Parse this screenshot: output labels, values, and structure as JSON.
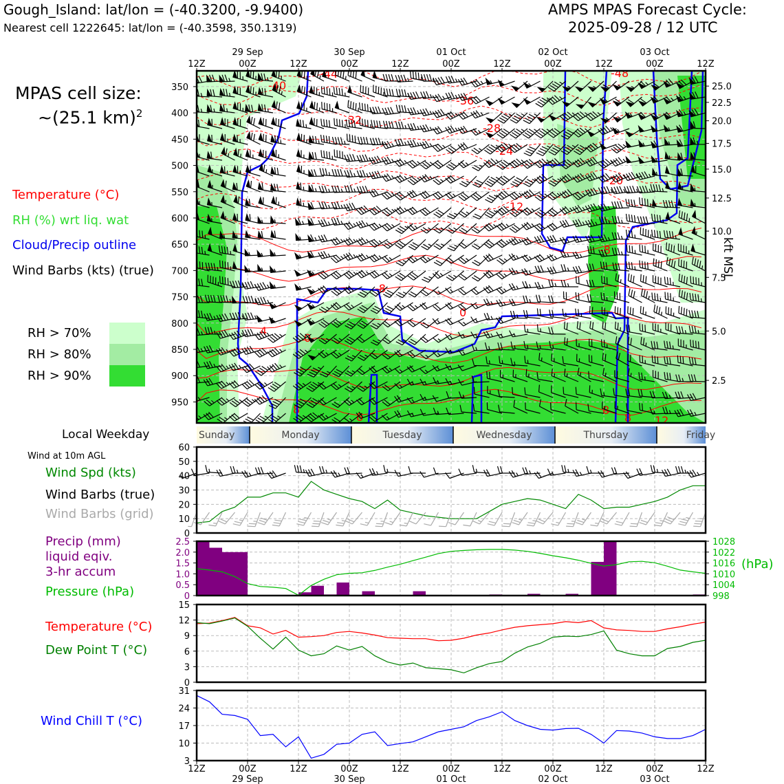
{
  "header": {
    "station": "Gough_Island: lat/lon = (-40.3200, -9.9400)",
    "nearest_cell": "Nearest cell 1222645: lat/lon = (-40.3598, 350.1319)",
    "cycle_title": "AMPS MPAS Forecast Cycle:",
    "cycle_time": "2025-09-28 / 12 UTC"
  },
  "colors": {
    "temperature": "#ff0000",
    "rh": "#33dd33",
    "rh70": "#ccffcc",
    "rh80": "#a3eca3",
    "rh90": "#33dd33",
    "cloud_outline": "#0000ee",
    "wind": "#000000",
    "wind_grid": "#aaaaaa",
    "wind_speed": "#008800",
    "precip": "#800080",
    "pressure": "#00bb00",
    "dewpoint": "#008000",
    "wind_chill": "#0000ff"
  },
  "left_panel": {
    "cell_size_label": "MPAS cell size:",
    "cell_size_value": "~(25.1 km)",
    "cell_size_exp": "2",
    "legend_temperature": "Temperature (°C)",
    "legend_rh": "RH (%) wrt liq. wat",
    "legend_cloud": "Cloud/Precip outline",
    "legend_wind": "Wind Barbs (kts) (true)",
    "rh_legend": [
      "RH > 70%",
      "RH > 80%",
      "RH > 90%"
    ],
    "weekday_title": "Local Weekday",
    "wind10m_title": "Wind at 10m AGL",
    "wind_spd_label": "Wind Spd (kts)",
    "wind_barbs_true": "Wind Barbs (true)",
    "wind_barbs_grid": "Wind Barbs (grid)",
    "precip_l1": "Precip (mm)",
    "precip_l2": "liquid eqiv.",
    "precip_l3": "3-hr accum",
    "pressure_label": "Pressure (hPa)",
    "temp_label": "Temperature (°C)",
    "dew_label": "Dew Point T (°C)",
    "windchill_label": "Wind Chill T (°C)",
    "pressure_unit": "(hPa)",
    "kft_label": "kft MSL"
  },
  "time_axis": {
    "top_date_labels": [
      "29 Sep",
      "30 Sep",
      "01 Oct",
      "02 Oct",
      "03 Oct"
    ],
    "hour_labels": [
      "12Z",
      "00Z",
      "12Z",
      "00Z",
      "12Z",
      "00Z",
      "12Z",
      "00Z",
      "12Z",
      "00Z",
      "12Z"
    ],
    "bottom_date_labels": [
      "29 Sep",
      "30 Sep",
      "01 Oct",
      "02 Oct",
      "03 Oct"
    ]
  },
  "weekdays": [
    "Sunday",
    "Monday",
    "Tuesday",
    "Wednesday",
    "Thursday",
    "Friday"
  ],
  "chart_data": [
    {
      "type": "heatmap",
      "title": "",
      "x_range_hours": [
        0,
        120
      ],
      "y_pressure_range_hpa": [
        990,
        320
      ],
      "pressure_ticks": [
        350,
        400,
        450,
        500,
        550,
        600,
        650,
        700,
        750,
        800,
        850,
        900,
        950
      ],
      "kft_ticks": [
        25.0,
        22.5,
        20.0,
        17.5,
        15.0,
        12.5,
        10.0,
        7.5,
        5.0,
        2.5
      ],
      "kft_tick_pressure": [
        349,
        380,
        415,
        458,
        507,
        562,
        625,
        713,
        815,
        909
      ],
      "temperature_contour_labels": [
        "-48",
        "-44",
        "-40",
        "-36",
        "-32",
        "-28",
        "-24",
        "-20",
        "-12",
        "-8",
        "-8",
        "0",
        "0",
        "4",
        "8",
        "8",
        "8",
        "8",
        "12"
      ],
      "rh_levels": [
        "RH > 70%",
        "RH > 80%",
        "RH > 90%"
      ],
      "grid": true
    },
    {
      "type": "line",
      "title": "Wind at 10m AGL",
      "ylim": [
        0,
        60
      ],
      "yticks": [
        0,
        10,
        20,
        30,
        40,
        50,
        60
      ],
      "x": [
        0,
        3,
        6,
        9,
        12,
        15,
        18,
        21,
        24,
        27,
        30,
        33,
        36,
        39,
        42,
        45,
        48,
        51,
        54,
        57,
        60,
        63,
        66,
        69,
        72,
        75,
        78,
        81,
        84,
        87,
        90,
        93,
        96,
        99,
        102,
        105,
        108,
        111,
        114,
        117,
        120
      ],
      "series": [
        {
          "name": "Wind Spd (kts)",
          "values": [
            7,
            8,
            15,
            18,
            25,
            25,
            28,
            28,
            25,
            36,
            30,
            27,
            24,
            22,
            17,
            23,
            16,
            14,
            12,
            11,
            10,
            10,
            10,
            15,
            20,
            22,
            24,
            23,
            20,
            17,
            27,
            23,
            17,
            18,
            18,
            20,
            22,
            25,
            30,
            33,
            33
          ]
        }
      ]
    },
    {
      "type": "bar",
      "title": "",
      "ylim": [
        0,
        2.5
      ],
      "yticks": [
        0,
        0.5,
        1.0,
        1.5,
        2.0,
        2.5
      ],
      "x": [
        0,
        3,
        6,
        9,
        12,
        15,
        18,
        21,
        24,
        27,
        30,
        33,
        36,
        39,
        42,
        45,
        48,
        51,
        54,
        57,
        60,
        63,
        66,
        69,
        72,
        75,
        78,
        81,
        84,
        87,
        90,
        93,
        96,
        99,
        102,
        105,
        108,
        111,
        114,
        117
      ],
      "series": [
        {
          "name": "Precip (mm)",
          "values": [
            2.5,
            2.2,
            2.0,
            2.0,
            0,
            0,
            0,
            0,
            0.15,
            0.45,
            0.05,
            0.6,
            0,
            0.2,
            0,
            0,
            0,
            0.2,
            0,
            0,
            0,
            0,
            0,
            0.05,
            0,
            0,
            0.08,
            0,
            0,
            0.08,
            0,
            1.55,
            2.5,
            0,
            0,
            0,
            0,
            0,
            0,
            0.05
          ]
        },
        {
          "name": "Pressure (hPa)",
          "axis": "right",
          "ylim": [
            998,
            1028
          ],
          "yticks": [
            998,
            1004,
            1010,
            1016,
            1022,
            1028
          ],
          "x": [
            0,
            3,
            6,
            9,
            12,
            15,
            18,
            21,
            24,
            27,
            30,
            33,
            36,
            39,
            42,
            45,
            48,
            51,
            54,
            57,
            60,
            63,
            66,
            69,
            72,
            75,
            78,
            81,
            84,
            87,
            90,
            93,
            96,
            99,
            102,
            105,
            108,
            111,
            114,
            117,
            120
          ],
          "values": [
            1012.9,
            1012.1,
            1011.1,
            1008.5,
            1004.6,
            1003.0,
            1002.6,
            1001.9,
            998.2,
            1003.6,
            1007.0,
            1009.5,
            1010.3,
            1010.6,
            1011.9,
            1013.7,
            1015.3,
            1017.3,
            1019.2,
            1021.2,
            1022.4,
            1022.9,
            1023.3,
            1023.5,
            1023.5,
            1023.1,
            1022.4,
            1021.3,
            1020.0,
            1018.9,
            1017.5,
            1015.8,
            1014.3,
            1015.1,
            1016.7,
            1016.9,
            1016.1,
            1014.2,
            1012.1,
            1011.1,
            1010.3
          ]
        }
      ]
    },
    {
      "type": "line",
      "title": "",
      "ylim": [
        0,
        15
      ],
      "yticks": [
        0,
        3,
        6,
        9,
        12,
        15
      ],
      "x": [
        0,
        3,
        6,
        9,
        12,
        15,
        18,
        21,
        24,
        27,
        30,
        33,
        36,
        39,
        42,
        45,
        48,
        51,
        54,
        57,
        60,
        63,
        66,
        69,
        72,
        75,
        78,
        81,
        84,
        87,
        90,
        93,
        96,
        99,
        102,
        105,
        108,
        111,
        114,
        117,
        120
      ],
      "series": [
        {
          "name": "Temperature (°C)",
          "values": [
            11.3,
            11.4,
            11.9,
            12.5,
            10.9,
            10.5,
            9.3,
            10.0,
            8.7,
            8.8,
            9.0,
            9.6,
            9.8,
            9.5,
            9.1,
            8.6,
            8.5,
            8.4,
            8.4,
            8.0,
            8.1,
            8.5,
            9.1,
            9.5,
            10.1,
            10.6,
            10.9,
            11.1,
            11.3,
            11.7,
            11.5,
            11.9,
            10.5,
            10.1,
            10.0,
            9.8,
            9.8,
            10.3,
            10.7,
            11.2,
            11.6
          ]
        },
        {
          "name": "Dew Point T (°C)",
          "values": [
            11.5,
            11.3,
            11.8,
            12.4,
            10.8,
            8.5,
            6.4,
            8.7,
            6.2,
            5.1,
            5.5,
            7.0,
            6.2,
            6.9,
            5.1,
            3.9,
            3.3,
            3.7,
            2.8,
            2.6,
            2.4,
            1.8,
            2.8,
            3.6,
            4.0,
            5.6,
            6.8,
            7.5,
            8.7,
            8.9,
            8.8,
            9.2,
            9.9,
            6.2,
            5.5,
            5.1,
            5.1,
            6.5,
            6.9,
            7.7,
            8.1
          ]
        }
      ]
    },
    {
      "type": "line",
      "title": "",
      "ylim": [
        3,
        31
      ],
      "yticks": [
        3,
        10,
        17,
        24,
        31
      ],
      "x": [
        0,
        3,
        6,
        9,
        12,
        15,
        18,
        21,
        24,
        27,
        30,
        33,
        36,
        39,
        42,
        45,
        48,
        51,
        54,
        57,
        60,
        63,
        66,
        69,
        72,
        75,
        78,
        81,
        84,
        87,
        90,
        93,
        96,
        99,
        102,
        105,
        108,
        111,
        114,
        117,
        120
      ],
      "series": [
        {
          "name": "Wind Chill T (°C)",
          "values": [
            29,
            26.5,
            21.5,
            21,
            19.5,
            13,
            13.5,
            8.5,
            12.5,
            4,
            5.5,
            9.5,
            10,
            13.5,
            14.5,
            9,
            9.8,
            10.5,
            12.5,
            14.5,
            15.5,
            16.5,
            19,
            20.5,
            22.5,
            19,
            17,
            15.5,
            15.2,
            15.8,
            15.9,
            13.5,
            10,
            15,
            14.8,
            14,
            12.5,
            11.8,
            11.8,
            13,
            15.5
          ]
        }
      ]
    }
  ]
}
